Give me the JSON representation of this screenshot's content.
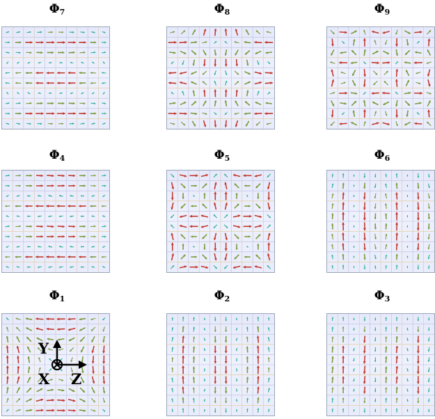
{
  "panels": [
    {
      "id": "phi7",
      "symbol": "Φ",
      "index": "7",
      "pattern": "ex_rows"
    },
    {
      "id": "phi8",
      "symbol": "Φ",
      "index": "8",
      "pattern": "cells_2x1"
    },
    {
      "id": "phi9",
      "symbol": "Φ",
      "index": "9",
      "pattern": "loops_3x3"
    },
    {
      "id": "phi4",
      "symbol": "Φ",
      "index": "4",
      "pattern": "ex_rows_dense"
    },
    {
      "id": "phi5",
      "symbol": "Φ",
      "index": "5",
      "pattern": "loops_2x2"
    },
    {
      "id": "phi6",
      "symbol": "Φ",
      "index": "6",
      "pattern": "ey_cols_3"
    },
    {
      "id": "phi1",
      "symbol": "Φ",
      "index": "1",
      "pattern": "loop_1"
    },
    {
      "id": "phi2",
      "symbol": "Φ",
      "index": "2",
      "pattern": "ey_cols_2"
    },
    {
      "id": "phi3",
      "symbol": "Φ",
      "index": "3",
      "pattern": "ey_cols_3b"
    }
  ],
  "axes": {
    "y_label": "Y",
    "x_label": "X",
    "z_label": "Z"
  },
  "colors": {
    "arrow_strong": "#c0392b",
    "arrow_weak": "#27ae8f",
    "arrow_mid": "#7a9a3a",
    "grid": "#b9bfd8",
    "panel_bg": "#e8ebfb"
  }
}
